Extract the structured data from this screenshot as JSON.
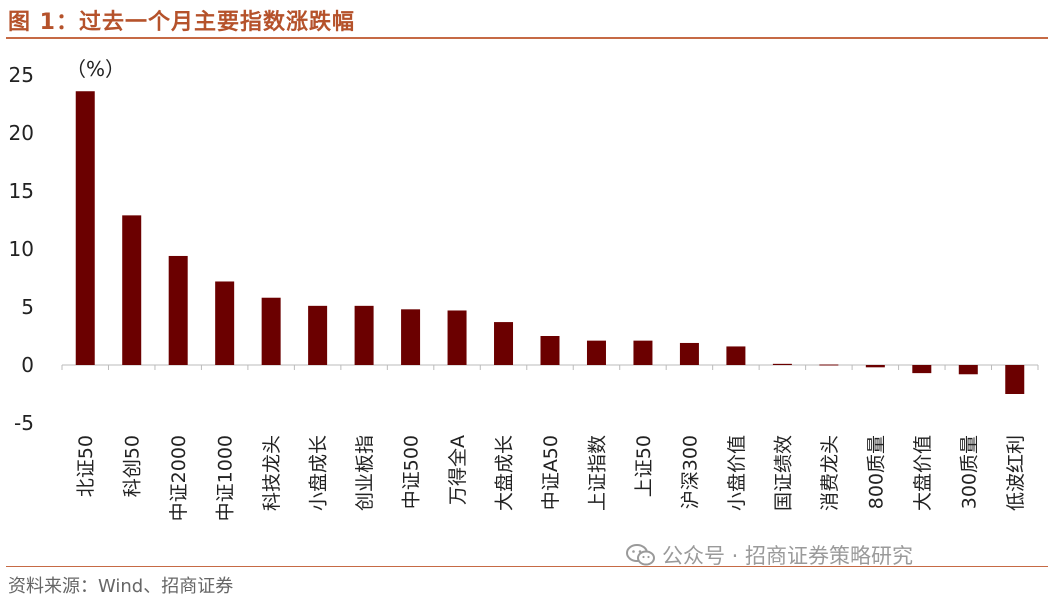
{
  "header": {
    "title": "图 1：过去一个月主要指数涨跌幅"
  },
  "footer": {
    "source": "资料来源：Wind、招商证券"
  },
  "watermark": {
    "text": "公众号 · 招商证券策略研究",
    "icon": "wechat-icon"
  },
  "colors": {
    "bar": "#6b0000",
    "accent": "#b5522b"
  },
  "chart_data": {
    "type": "bar",
    "unit_label": "（%）",
    "categories": [
      "北证50",
      "科创50",
      "中证2000",
      "中证1000",
      "科技龙头",
      "小盘成长",
      "创业板指",
      "中证500",
      "万得全A",
      "大盘成长",
      "中证A50",
      "上证指数",
      "上证50",
      "沪深300",
      "小盘价值",
      "国证绩效",
      "消费龙头",
      "800质量",
      "大盘价值",
      "300质量",
      "低波红利"
    ],
    "values": [
      23.6,
      12.9,
      9.4,
      7.2,
      5.8,
      5.1,
      5.1,
      4.8,
      4.7,
      3.7,
      2.5,
      2.1,
      2.1,
      1.9,
      1.6,
      0.1,
      0.0,
      -0.2,
      -0.7,
      -0.8,
      -2.5
    ],
    "yticks": [
      -5,
      0,
      5,
      10,
      15,
      20,
      25
    ],
    "ylim": [
      -5,
      25
    ],
    "grid": false,
    "legend": "none"
  }
}
